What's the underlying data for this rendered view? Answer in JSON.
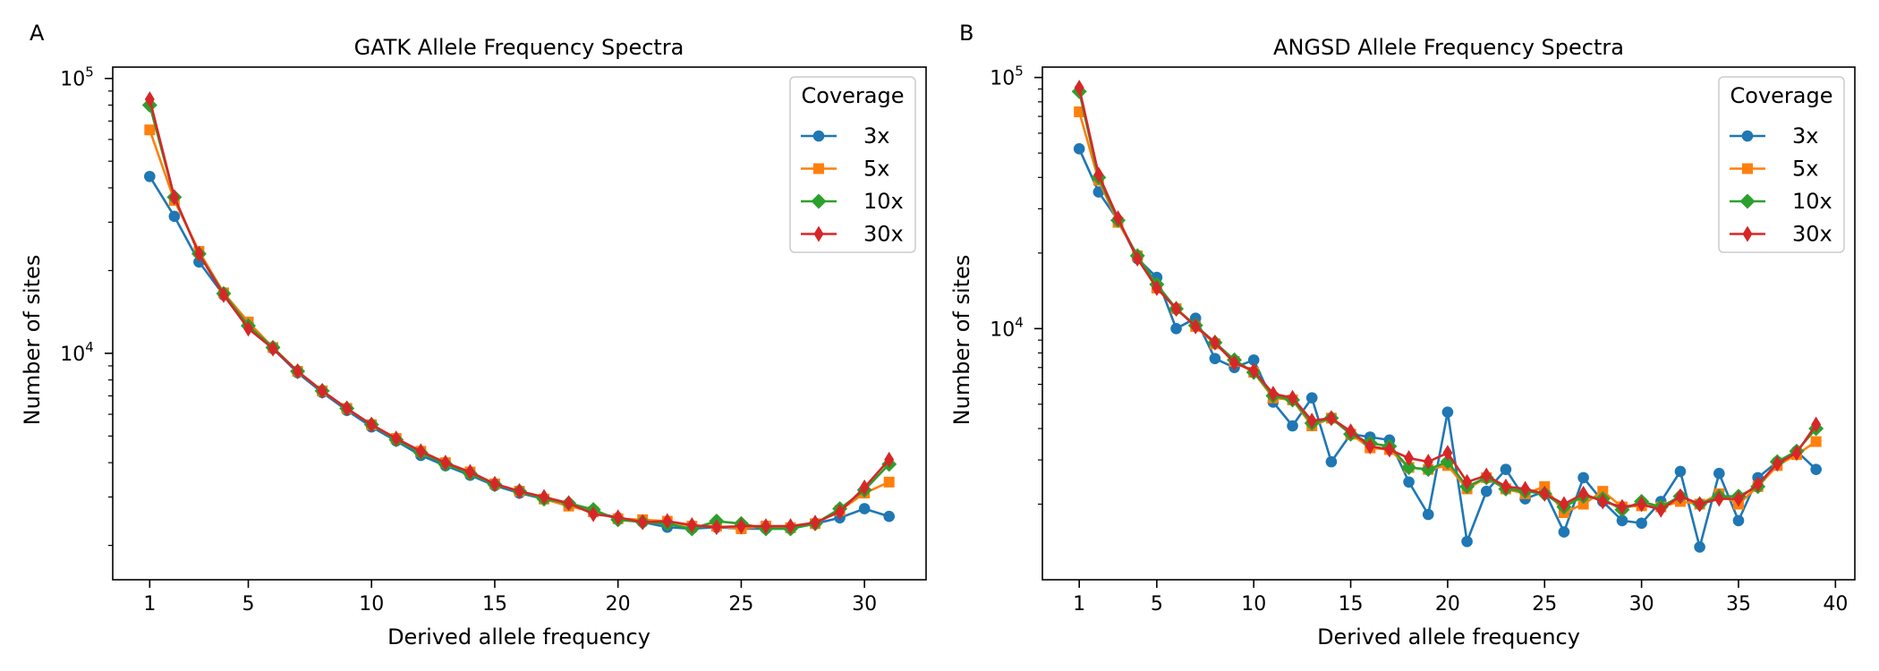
{
  "figure": {
    "panels": [
      "A",
      "B"
    ]
  },
  "chart_data": [
    {
      "panel_label": "A",
      "type": "line",
      "title": "GATK Allele Frequency Spectra",
      "xlabel": "Derived allele frequency",
      "ylabel": "Number of sites",
      "xlim": [
        -0.5,
        32.5
      ],
      "ylim": [
        1500,
        110000
      ],
      "yscale": "log",
      "x_ticks": [
        1,
        5,
        10,
        15,
        20,
        25,
        30
      ],
      "y_ticks": [
        {
          "value": 10000,
          "base": "10",
          "exp": "4"
        },
        {
          "value": 100000,
          "base": "10",
          "exp": "5"
        }
      ],
      "grid": false,
      "legend": {
        "title": "Coverage",
        "position": "top-right"
      },
      "series": [
        {
          "name": "3x",
          "color": "#1f77b4",
          "marker": "circle",
          "x": [
            1,
            2,
            3,
            4,
            5,
            6,
            7,
            8,
            9,
            10,
            11,
            12,
            13,
            14,
            15,
            16,
            17,
            18,
            19,
            20,
            21,
            22,
            23,
            24,
            25,
            26,
            27,
            28,
            29,
            30,
            31
          ],
          "y": [
            44000,
            31500,
            21500,
            16300,
            12800,
            10400,
            8500,
            7200,
            6200,
            5400,
            4800,
            4250,
            3900,
            3600,
            3300,
            3100,
            2950,
            2800,
            2650,
            2520,
            2430,
            2330,
            2300,
            2330,
            2300,
            2300,
            2300,
            2400,
            2520,
            2720,
            2550
          ]
        },
        {
          "name": "5x",
          "color": "#ff7f0e",
          "marker": "square",
          "x": [
            1,
            2,
            3,
            4,
            5,
            6,
            7,
            8,
            9,
            10,
            11,
            12,
            13,
            14,
            15,
            16,
            17,
            18,
            19,
            20,
            21,
            22,
            23,
            24,
            25,
            26,
            27,
            28,
            29,
            30,
            31
          ],
          "y": [
            65000,
            36000,
            23500,
            16600,
            13000,
            10500,
            8600,
            7300,
            6300,
            5500,
            4900,
            4400,
            4000,
            3700,
            3350,
            3150,
            2950,
            2780,
            2650,
            2500,
            2480,
            2450,
            2350,
            2350,
            2300,
            2350,
            2320,
            2400,
            2680,
            3100,
            3400
          ]
        },
        {
          "name": "10x",
          "color": "#2ca02c",
          "marker": "diamond",
          "x": [
            1,
            2,
            3,
            4,
            5,
            6,
            7,
            8,
            9,
            10,
            11,
            12,
            13,
            14,
            15,
            16,
            17,
            18,
            19,
            20,
            21,
            22,
            23,
            24,
            25,
            26,
            27,
            28,
            29,
            30,
            31
          ],
          "y": [
            80000,
            37000,
            23000,
            16500,
            12600,
            10500,
            8600,
            7300,
            6300,
            5500,
            4850,
            4350,
            3950,
            3650,
            3330,
            3150,
            2950,
            2850,
            2700,
            2480,
            2430,
            2400,
            2300,
            2450,
            2400,
            2300,
            2300,
            2400,
            2720,
            3180,
            3950
          ]
        },
        {
          "name": "30x",
          "color": "#d62728",
          "marker": "thin_diamond",
          "x": [
            1,
            2,
            3,
            4,
            5,
            6,
            7,
            8,
            9,
            10,
            11,
            12,
            13,
            14,
            15,
            16,
            17,
            18,
            19,
            20,
            21,
            22,
            23,
            24,
            25,
            26,
            27,
            28,
            29,
            30,
            31
          ],
          "y": [
            84000,
            37000,
            23000,
            16300,
            12300,
            10400,
            8600,
            7300,
            6300,
            5500,
            4900,
            4400,
            4000,
            3700,
            3350,
            3150,
            3000,
            2850,
            2600,
            2530,
            2430,
            2450,
            2370,
            2330,
            2350,
            2350,
            2350,
            2420,
            2650,
            3250,
            4100
          ]
        }
      ]
    },
    {
      "panel_label": "B",
      "type": "line",
      "title": "ANGSD Allele Frequency Spectra",
      "xlabel": "Derived allele frequency",
      "ylabel": "Number of sites",
      "xlim": [
        -0.9,
        41.0
      ],
      "ylim": [
        1000,
        110000
      ],
      "yscale": "log",
      "x_ticks": [
        1,
        5,
        10,
        15,
        20,
        25,
        30,
        35,
        40
      ],
      "y_ticks": [
        {
          "value": 10000,
          "base": "10",
          "exp": "4"
        },
        {
          "value": 100000,
          "base": "10",
          "exp": "5"
        }
      ],
      "grid": false,
      "legend": {
        "title": "Coverage",
        "position": "top-right"
      },
      "series": [
        {
          "name": "3x",
          "color": "#1f77b4",
          "marker": "circle",
          "x": [
            1,
            2,
            3,
            4,
            5,
            6,
            7,
            8,
            9,
            10,
            11,
            12,
            13,
            14,
            15,
            16,
            17,
            18,
            19,
            20,
            21,
            22,
            23,
            24,
            25,
            26,
            27,
            28,
            29,
            30,
            31,
            32,
            33,
            34,
            35,
            36,
            37,
            38,
            39
          ],
          "y": [
            52000,
            35000,
            27000,
            19000,
            16000,
            10000,
            11000,
            7600,
            7000,
            7500,
            5100,
            4100,
            5300,
            2950,
            3800,
            3700,
            3600,
            2450,
            1820,
            4650,
            1420,
            2250,
            2750,
            2100,
            2250,
            1550,
            2550,
            2050,
            1720,
            1680,
            2050,
            2700,
            1350,
            2650,
            1720,
            2550,
            2950,
            3250,
            2750
          ]
        },
        {
          "name": "5x",
          "color": "#ff7f0e",
          "marker": "square",
          "x": [
            1,
            2,
            3,
            4,
            5,
            6,
            7,
            8,
            9,
            10,
            11,
            12,
            13,
            14,
            15,
            16,
            17,
            18,
            19,
            20,
            21,
            22,
            23,
            24,
            25,
            26,
            27,
            28,
            29,
            30,
            31,
            32,
            33,
            34,
            35,
            36,
            37,
            38,
            39
          ],
          "y": [
            73000,
            39000,
            26500,
            19500,
            14500,
            12000,
            10200,
            8700,
            7400,
            6700,
            5300,
            5200,
            4100,
            4400,
            3800,
            3350,
            3300,
            2800,
            2750,
            2850,
            2300,
            2550,
            2300,
            2200,
            2350,
            1850,
            2000,
            2250,
            1950,
            1970,
            1950,
            2050,
            2000,
            2200,
            2000,
            2350,
            2850,
            3150,
            3550
          ]
        },
        {
          "name": "10x",
          "color": "#2ca02c",
          "marker": "diamond",
          "x": [
            1,
            2,
            3,
            4,
            5,
            6,
            7,
            8,
            9,
            10,
            11,
            12,
            13,
            14,
            15,
            16,
            17,
            18,
            19,
            20,
            21,
            22,
            23,
            24,
            25,
            26,
            27,
            28,
            29,
            30,
            31,
            32,
            33,
            34,
            35,
            36,
            37,
            38,
            39
          ],
          "y": [
            88000,
            40000,
            27000,
            19500,
            15000,
            12000,
            10300,
            8800,
            7500,
            6700,
            5400,
            5200,
            4200,
            4400,
            3800,
            3500,
            3400,
            2800,
            2750,
            2950,
            2350,
            2550,
            2300,
            2250,
            2200,
            1950,
            2150,
            2100,
            1900,
            2050,
            1950,
            2150,
            2000,
            2150,
            2150,
            2350,
            2950,
            3250,
            4000
          ]
        },
        {
          "name": "30x",
          "color": "#d62728",
          "marker": "thin_diamond",
          "x": [
            1,
            2,
            3,
            4,
            5,
            6,
            7,
            8,
            9,
            10,
            11,
            12,
            13,
            14,
            15,
            16,
            17,
            18,
            19,
            20,
            21,
            22,
            23,
            24,
            25,
            26,
            27,
            28,
            29,
            30,
            31,
            32,
            33,
            34,
            35,
            36,
            37,
            38,
            39
          ],
          "y": [
            91000,
            41000,
            27500,
            19000,
            14500,
            12000,
            10200,
            8800,
            7300,
            6800,
            5500,
            5300,
            4300,
            4400,
            3900,
            3400,
            3300,
            3050,
            2950,
            3200,
            2450,
            2600,
            2350,
            2300,
            2200,
            2000,
            2200,
            2050,
            1950,
            2000,
            1900,
            2150,
            2000,
            2100,
            2100,
            2400,
            2900,
            3200,
            4150
          ]
        }
      ]
    }
  ]
}
